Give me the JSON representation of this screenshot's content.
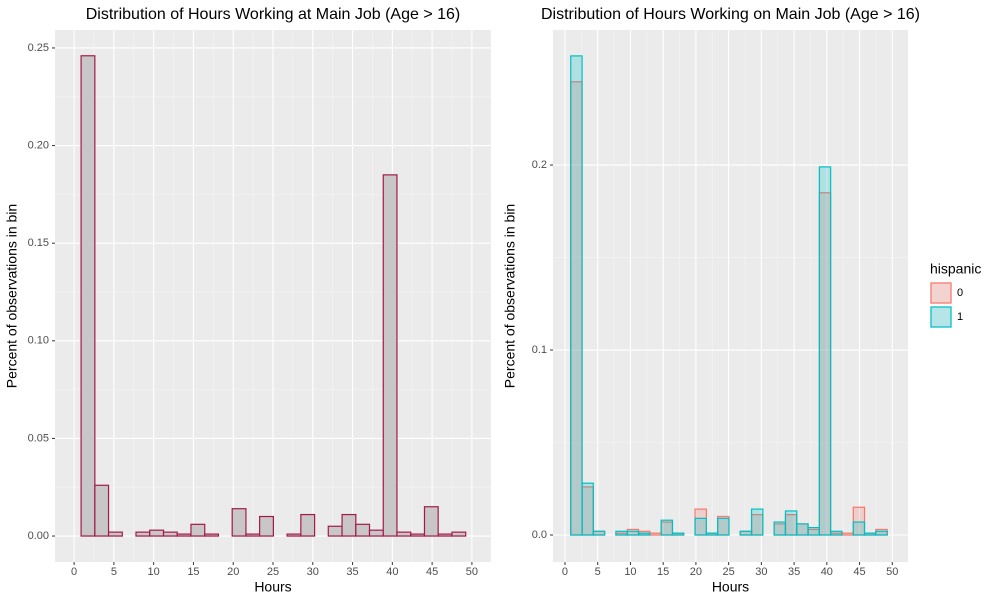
{
  "chart_data": [
    {
      "type": "histogram",
      "title": "Distribution of Hours Working at Main Job (Age > 16)",
      "x_label": "Hours",
      "y_label": "Percent of observations in bin",
      "bins": [
        0.88,
        2.61,
        4.33,
        6.06,
        7.78,
        9.51,
        11.24,
        12.96,
        14.69,
        16.42,
        18.14,
        19.87,
        21.6,
        23.32,
        25.05,
        26.77,
        28.5,
        30.23,
        31.95,
        33.68,
        35.41,
        37.13,
        38.86,
        40.58,
        42.31,
        44.04,
        45.76,
        47.49,
        49.22
      ],
      "values": [
        0.246,
        0.026,
        0.002,
        0,
        0.002,
        0.003,
        0.002,
        0.001,
        0.006,
        0.001,
        0,
        0.014,
        0.001,
        0.01,
        0,
        0.001,
        0.011,
        0,
        0.005,
        0.011,
        0.006,
        0.003,
        0.185,
        0.002,
        0.001,
        0.015,
        0.001,
        0.002
      ],
      "color": "#a31a4a",
      "fill": "#c8c6c7",
      "xlim": [
        -2.4,
        52.4
      ],
      "xticks": [
        0,
        5,
        10,
        15,
        20,
        25,
        30,
        35,
        40,
        45,
        50
      ],
      "ylim": [
        -0.0133,
        0.2592
      ],
      "yticks": [
        {
          "value": 0,
          "label": "0.00"
        },
        {
          "value": 0.05,
          "label": "0.05"
        },
        {
          "value": 0.1,
          "label": "0.10"
        },
        {
          "value": 0.15,
          "label": "0.15"
        },
        {
          "value": 0.2,
          "label": "0.20"
        },
        {
          "value": 0.25,
          "label": "0.25"
        }
      ],
      "grid": true
    },
    {
      "type": "histogram",
      "title": "Distribution of Hours Working on Main Job (Age > 16)",
      "x_label": "Hours",
      "y_label": "Percent of observations in bin",
      "legend_title": "hispanic",
      "legend": "right",
      "bins": [
        0.88,
        2.61,
        4.33,
        6.06,
        7.78,
        9.51,
        11.24,
        12.96,
        14.69,
        16.42,
        18.14,
        19.87,
        21.6,
        23.32,
        25.05,
        26.77,
        28.5,
        30.23,
        31.95,
        33.68,
        35.41,
        37.13,
        38.86,
        40.58,
        42.31,
        44.04,
        45.76,
        47.49,
        49.22
      ],
      "series": [
        {
          "name": "0",
          "color": "#f8766d",
          "values": [
            0.245,
            0.026,
            0.002,
            0,
            0.001,
            0.003,
            0.002,
            0.001,
            0.007,
            0.001,
            0,
            0.014,
            0.001,
            0.01,
            0,
            0.002,
            0.011,
            0,
            0.006,
            0.011,
            0.006,
            0.003,
            0.185,
            0.001,
            0.001,
            0.015,
            0.001,
            0.003
          ]
        },
        {
          "name": "1",
          "color": "#00bfc4",
          "values": [
            0.259,
            0.028,
            0.002,
            0,
            0.002,
            0.002,
            0.001,
            0,
            0.008,
            0.001,
            0,
            0.009,
            0.001,
            0.009,
            0,
            0.002,
            0.014,
            0,
            0.007,
            0.013,
            0.006,
            0.004,
            0.199,
            0.002,
            0,
            0.007,
            0.001,
            0.002
          ]
        }
      ],
      "xlim": [
        -1.83,
        52.4
      ],
      "xticks": [
        0,
        5,
        10,
        15,
        20,
        25,
        30,
        35,
        40,
        45,
        50
      ],
      "ylim": [
        -0.0146,
        0.273
      ],
      "yticks": [
        {
          "value": 0,
          "label": "0.0"
        },
        {
          "value": 0.1,
          "label": "0.1"
        },
        {
          "value": 0.2,
          "label": "0.2"
        }
      ],
      "grid": true
    }
  ]
}
